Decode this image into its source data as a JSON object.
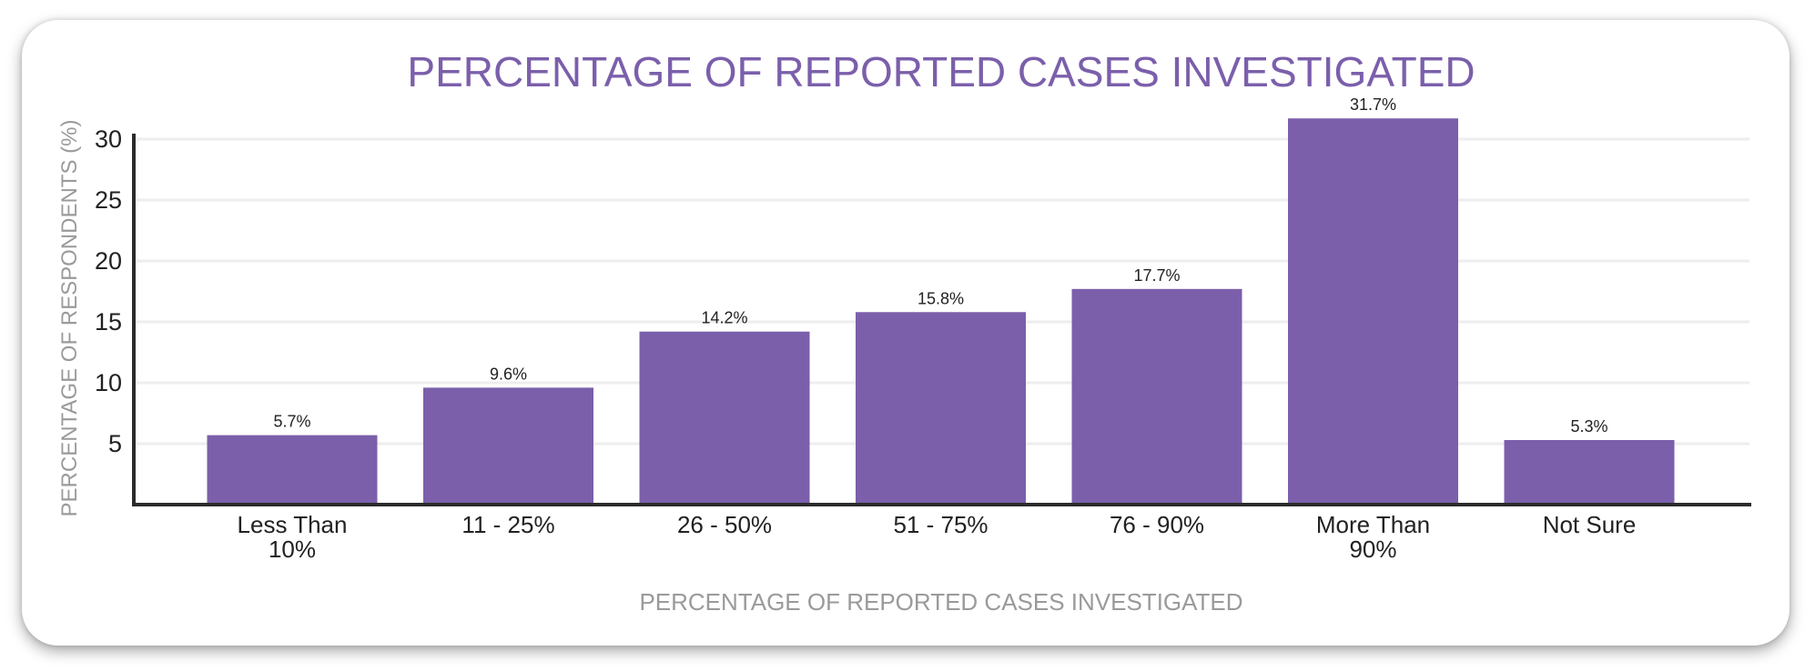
{
  "chart_data": {
    "type": "bar",
    "title": "PERCENTAGE OF REPORTED CASES INVESTIGATED",
    "xlabel": "PERCENTAGE OF REPORTED CASES INVESTIGATED",
    "ylabel": "PERCENTAGE OF RESPONDENTS (%)",
    "categories": [
      [
        "Less Than",
        "10%"
      ],
      [
        "11 - 25%"
      ],
      [
        "26 - 50%"
      ],
      [
        "51 - 75%"
      ],
      [
        "76 - 90%"
      ],
      [
        "More Than",
        "90%"
      ],
      [
        "Not Sure"
      ]
    ],
    "values": [
      5.7,
      9.6,
      14.2,
      15.8,
      17.7,
      31.7,
      5.3
    ],
    "value_labels": [
      "5.7%",
      "9.6%",
      "14.2%",
      "15.8%",
      "17.7%",
      "31.7%",
      "5.3%"
    ],
    "yticks": [
      5,
      10,
      15,
      20,
      25,
      30
    ],
    "ylim": [
      0,
      30
    ],
    "grid": true,
    "colors": {
      "bar": "#7b5fab",
      "title": "#7b5fab",
      "axis": "#2b2b2b",
      "grid": "#eeeeee",
      "label": "#222222",
      "muted": "#9a9a9a"
    }
  }
}
